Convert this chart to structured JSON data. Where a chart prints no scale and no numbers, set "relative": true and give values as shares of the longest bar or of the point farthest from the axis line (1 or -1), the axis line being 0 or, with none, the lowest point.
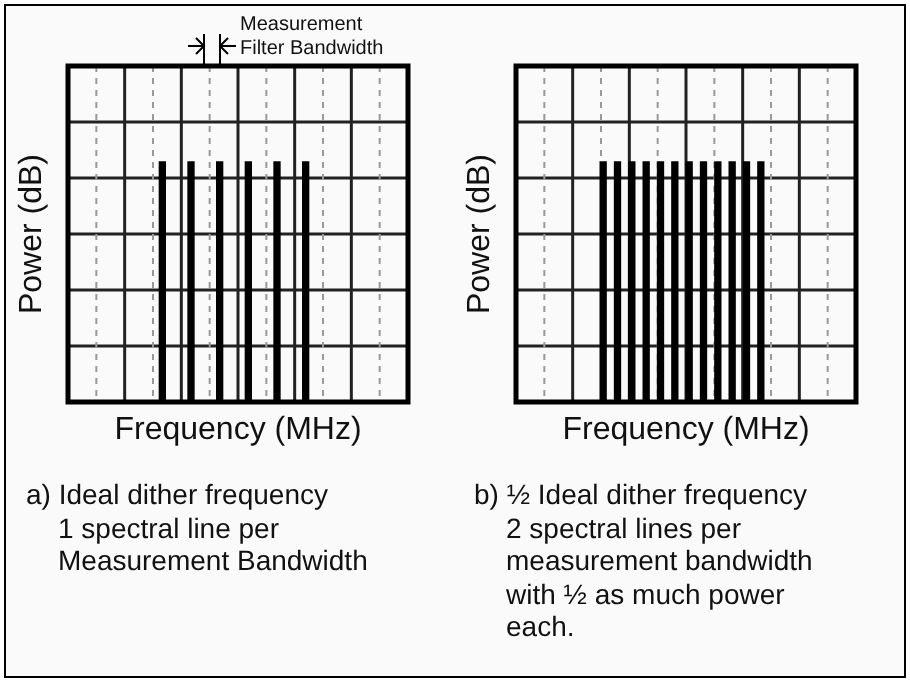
{
  "chart_data": [
    {
      "type": "bar",
      "relative": true,
      "xlabel": "Frequency (MHz)",
      "ylabel": "Power (dB)",
      "grid": true,
      "color": "#000000",
      "categories": [
        null,
        null,
        null,
        null,
        null,
        null
      ],
      "values": [
        1,
        1,
        1,
        1,
        1,
        1
      ],
      "annotations": [
        "Measurement Filter Bandwidth",
        "a) Ideal dither frequency\n1 spectral line per\nMeasurement Bandwidth"
      ]
    },
    {
      "type": "bar",
      "relative": true,
      "xlabel": "Frequency (MHz)",
      "ylabel": "Power (dB)",
      "grid": true,
      "color": "#000000",
      "categories": [
        null,
        null,
        null,
        null,
        null,
        null,
        null,
        null,
        null,
        null,
        null,
        null
      ],
      "values": [
        1,
        1,
        1,
        1,
        1,
        1,
        1,
        1,
        1,
        1,
        1,
        1
      ],
      "annotations": [
        "b) ½ Ideal dither frequency\n2 spectral lines per\nmeasurement bandwidth\nwith ½ as much power\neach."
      ]
    }
  ]
}
